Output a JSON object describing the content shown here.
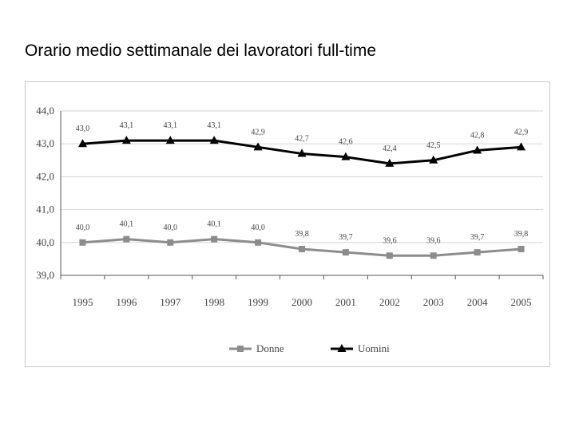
{
  "page": {
    "title": "Orario medio settimanale dei lavoratori full-time"
  },
  "chart_data": {
    "type": "line",
    "title": "",
    "xlabel": "",
    "ylabel": "",
    "categories": [
      "1995",
      "1996",
      "1997",
      "1998",
      "1999",
      "2000",
      "2001",
      "2002",
      "2003",
      "2004",
      "2005"
    ],
    "ylim": [
      39.0,
      44.0
    ],
    "yticks": [
      39.0,
      40.0,
      41.0,
      42.0,
      43.0,
      44.0
    ],
    "ytick_labels": [
      "39,0",
      "40,0",
      "41,0",
      "42,0",
      "43,0",
      "44,0"
    ],
    "grid": true,
    "legend_position": "bottom",
    "series": [
      {
        "name": "Donne",
        "marker": "square",
        "color": "#8c8c8c",
        "values": [
          40.0,
          40.1,
          40.0,
          40.1,
          40.0,
          39.8,
          39.7,
          39.6,
          39.6,
          39.7,
          39.8
        ],
        "labels": [
          "40,0",
          "40,1",
          "40,0",
          "40,1",
          "40,0",
          "39,8",
          "39,7",
          "39,6",
          "39,6",
          "39,7",
          "39,8"
        ]
      },
      {
        "name": "Uomini",
        "marker": "triangle",
        "color": "#000000",
        "values": [
          43.0,
          43.1,
          43.1,
          43.1,
          42.9,
          42.7,
          42.6,
          42.4,
          42.5,
          42.8,
          42.9
        ],
        "labels": [
          "43,0",
          "43,1",
          "43,1",
          "43,1",
          "42,9",
          "42,7",
          "42,6",
          "42,4",
          "42,5",
          "42,8",
          "42,9"
        ]
      }
    ]
  }
}
